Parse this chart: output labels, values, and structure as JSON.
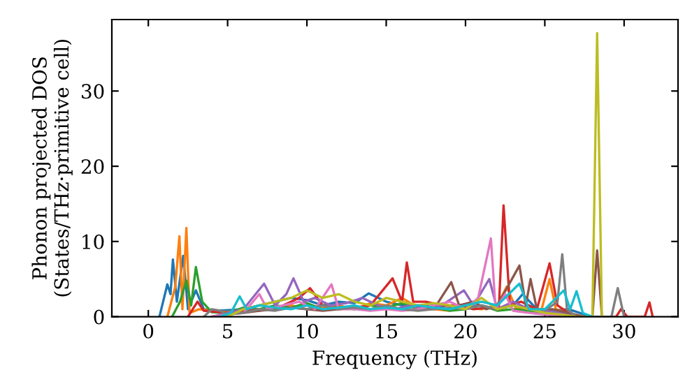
{
  "chart_data": {
    "type": "line",
    "xlabel": "Frequency (THz)",
    "ylabel": "Phonon projected DOS\n(States/THz·primitive cell)",
    "xlim": [
      -2.3,
      33.4
    ],
    "ylim": [
      0,
      39.5
    ],
    "xticks": [
      0,
      5,
      10,
      15,
      20,
      25,
      30
    ],
    "yticks": [
      0,
      10,
      20,
      30
    ],
    "grid": false,
    "legend": false,
    "marker": "none",
    "line_style": "solid",
    "series": [
      {
        "color": "#1f77b4",
        "x": [
          0.7,
          1.2,
          1.4,
          1.55,
          1.8,
          2.2,
          2.5,
          3.0,
          3.5,
          4.5,
          6,
          7,
          8,
          9,
          10,
          11,
          12,
          13,
          13.9,
          15,
          16,
          17,
          18,
          19,
          20,
          21,
          22,
          23,
          23.6,
          24.5,
          25.5,
          26.5,
          27.5,
          28
        ],
        "values": [
          0,
          4.3,
          3,
          7.6,
          2,
          8.1,
          1,
          3.5,
          1,
          0.8,
          1,
          1.5,
          2,
          2.5,
          2.2,
          1.5,
          2,
          1.8,
          3.1,
          2,
          1.5,
          1.2,
          1.5,
          1.0,
          1.3,
          1.5,
          1.0,
          1.5,
          3.0,
          1.0,
          0.8,
          1.0,
          0.3,
          0
        ]
      },
      {
        "color": "#ff7f0e",
        "x": [
          1.2,
          1.7,
          1.96,
          2.15,
          2.4,
          2.6,
          3.2,
          4,
          5,
          6,
          7,
          8,
          9,
          10,
          11,
          12,
          13,
          14,
          15,
          16,
          17,
          18,
          19,
          20,
          21,
          22,
          22.6,
          23.2,
          24,
          24.8,
          25.3,
          25.7,
          26.5,
          27
        ],
        "values": [
          0,
          4,
          10.7,
          1,
          11.8,
          0.5,
          1,
          0.8,
          0.6,
          1,
          0.8,
          1.2,
          1.5,
          1.0,
          1.2,
          1.5,
          1.0,
          1.8,
          1.5,
          2.5,
          1.2,
          1.0,
          0.8,
          1.2,
          1.0,
          1.5,
          4.0,
          1.0,
          1.2,
          1.0,
          5.0,
          1.0,
          0.5,
          0
        ]
      },
      {
        "color": "#2ca02c",
        "x": [
          1.5,
          2.0,
          2.4,
          2.7,
          3.0,
          3.4,
          4,
          5,
          6,
          7,
          8,
          9,
          10,
          11,
          12,
          13,
          14,
          15,
          16,
          17,
          18,
          19,
          20,
          21,
          22,
          23,
          24,
          25,
          26,
          27
        ],
        "values": [
          0,
          2,
          4.8,
          1.5,
          6.6,
          2,
          0.6,
          0.5,
          1.2,
          1.0,
          1.5,
          1.2,
          1.8,
          1.0,
          1.3,
          1.0,
          1.5,
          1.2,
          1.8,
          1.0,
          1.2,
          0.8,
          1.0,
          1.5,
          0.8,
          1.0,
          0.8,
          0.5,
          0.3,
          0
        ]
      },
      {
        "color": "#d62728",
        "x": [
          2.5,
          3.1,
          3.5,
          5,
          6,
          8,
          9.5,
          10.2,
          11,
          12,
          13,
          14,
          15.4,
          16,
          16.3,
          16.7,
          17.5,
          18.5,
          19.5,
          20.5,
          21.5,
          22.1,
          22.4,
          22.8,
          23.5,
          24.5,
          25.3,
          25.8,
          26.5,
          27,
          29.5,
          29.8,
          30.2,
          31.3,
          31.6,
          31.8
        ],
        "values": [
          0,
          2,
          0.8,
          0.5,
          0.8,
          1.0,
          2.5,
          3.8,
          1.5,
          1.0,
          1.2,
          1.5,
          5.1,
          2,
          7.2,
          2,
          2.0,
          1.5,
          1.5,
          1.0,
          1.2,
          1,
          14.8,
          1.5,
          2.0,
          1.0,
          7.1,
          1.5,
          0.5,
          0,
          0,
          1.0,
          0,
          0,
          1.9,
          0
        ]
      },
      {
        "color": "#9467bd",
        "x": [
          4,
          5,
          6,
          7.3,
          8,
          8.7,
          9.15,
          9.8,
          10.5,
          11.5,
          12.5,
          13.5,
          14.5,
          15.5,
          16.5,
          17.5,
          18.5,
          19.9,
          20.5,
          21.5,
          22,
          23,
          24,
          25,
          26,
          27
        ],
        "values": [
          0,
          0.5,
          1.0,
          4.4,
          1.5,
          3.0,
          5.1,
          2.0,
          2.5,
          1.5,
          1.8,
          2.5,
          1.5,
          1.0,
          1.5,
          1.0,
          1.5,
          3.5,
          1.5,
          5.0,
          1,
          2.0,
          1.0,
          0.8,
          0.5,
          0
        ]
      },
      {
        "color": "#8c564b",
        "x": [
          4,
          5,
          6,
          7,
          8,
          9,
          10,
          11,
          12,
          13,
          14,
          15,
          16,
          17,
          18,
          19.1,
          19.6,
          20.5,
          21.3,
          22,
          23.4,
          23.8,
          24.1,
          24.5,
          25.5,
          26.5,
          27.5,
          28,
          28.3,
          28.6
        ],
        "values": [
          0,
          0.3,
          0.5,
          0.8,
          1.0,
          1.2,
          1.0,
          0.8,
          1.0,
          1.2,
          1.0,
          1.2,
          1.0,
          1.5,
          1.0,
          4.6,
          1.5,
          2.0,
          1.0,
          1.5,
          6.8,
          1.5,
          5.0,
          1.0,
          1.0,
          0.5,
          0,
          0,
          8.8,
          0
        ]
      },
      {
        "color": "#e377c2",
        "x": [
          4,
          5,
          6,
          7,
          7.5,
          8.5,
          9.5,
          10.5,
          11.55,
          12,
          13,
          14,
          15,
          16,
          17,
          18,
          19,
          20,
          20.8,
          21.6,
          21.9,
          22.5,
          23,
          24,
          25,
          26
        ],
        "values": [
          0,
          0.3,
          0.5,
          3.0,
          1.0,
          1.5,
          2.0,
          1.0,
          4.3,
          1.0,
          1.0,
          0.8,
          1.0,
          0.8,
          1.0,
          1.5,
          2.0,
          1.0,
          2.5,
          10.4,
          1.0,
          3.0,
          0.8,
          0.5,
          0.3,
          0
        ]
      },
      {
        "color": "#7f7f7f",
        "x": [
          3.5,
          4,
          4.5,
          5,
          6,
          7,
          8,
          9,
          10,
          11,
          12,
          13,
          14,
          15,
          16,
          17,
          18,
          19,
          20,
          21,
          22,
          23,
          24,
          25,
          25.8,
          26.1,
          26.4,
          27,
          29.2,
          29.6,
          30.0
        ],
        "values": [
          0,
          1.0,
          0.8,
          0.3,
          0.5,
          1.0,
          0.8,
          1.2,
          1.0,
          1.5,
          1.0,
          1.2,
          1.0,
          1.5,
          1.0,
          0.8,
          1.0,
          1.2,
          1.0,
          1.5,
          1.0,
          1.5,
          1.0,
          0.8,
          2,
          8.3,
          1.0,
          0,
          0,
          3.8,
          0
        ]
      },
      {
        "color": "#bcbd22",
        "x": [
          5,
          6,
          7,
          8,
          9,
          10,
          11,
          12,
          13,
          14,
          15,
          16,
          17,
          18,
          19,
          20,
          21,
          22,
          23,
          24,
          25,
          26,
          27,
          28.0,
          28.3,
          28.6
        ],
        "values": [
          0,
          1.0,
          1.5,
          2.0,
          2.5,
          3.5,
          2.5,
          3.0,
          2.0,
          1.5,
          2.5,
          2.0,
          1.5,
          1.8,
          1.5,
          1.0,
          2.5,
          1.0,
          1.5,
          1.0,
          0.5,
          0.3,
          0,
          0,
          37.7,
          0
        ]
      },
      {
        "color": "#17becf",
        "x": [
          4.5,
          5.2,
          5.76,
          6.2,
          7,
          8,
          9,
          10,
          11,
          12,
          13,
          14,
          15,
          16,
          17,
          18,
          19,
          20,
          21,
          22,
          23.4,
          24,
          25,
          26.2,
          26.6,
          27.0,
          27.4,
          28
        ],
        "values": [
          0,
          0.5,
          2.7,
          1.0,
          1.5,
          1.2,
          1.0,
          1.5,
          1.0,
          1.2,
          1.5,
          1.0,
          1.2,
          1.0,
          1.5,
          1.2,
          1.0,
          1.5,
          2.0,
          1.5,
          4.4,
          1.0,
          1.0,
          3.5,
          1,
          3.4,
          0.5,
          0
        ]
      }
    ]
  }
}
